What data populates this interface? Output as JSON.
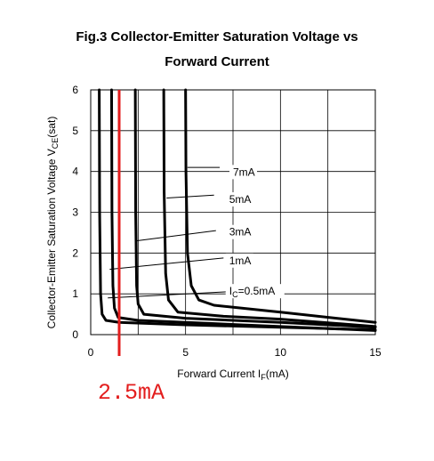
{
  "colors": {
    "curve": "#000000",
    "marker": "#e31d1d",
    "grid": "#000000"
  },
  "chart_data": {
    "type": "line",
    "title_line1": "Fig.3 Collector-Emitter Saturation Voltage vs",
    "title_line2": "Forward Current",
    "ylabel_pre": "Collector-Emitter Saturation Voltage V",
    "ylabel_sub": "CE",
    "ylabel_post": "(sat)",
    "xlabel_pre": "Forward Current I",
    "xlabel_sub": "F",
    "xlabel_post": "(mA)",
    "xlim": [
      0,
      15
    ],
    "ylim": [
      0,
      6
    ],
    "xticks": [
      0,
      5,
      10,
      15
    ],
    "yticks": [
      0,
      1,
      2,
      3,
      4,
      5,
      6
    ],
    "x_gridlines": [
      2.5,
      5,
      7.5,
      10,
      12.5
    ],
    "y_gridlines": [
      1,
      2,
      3,
      4,
      5
    ],
    "grid": true,
    "legend": "none",
    "series": [
      {
        "name": "",
        "label_pre": "I",
        "label_sub": "C",
        "label_post": "=0.5mA",
        "label_x": 7.3,
        "label_y": 1.0,
        "leader": [
          [
            0.9,
            0.9
          ],
          [
            7.2,
            1.05
          ]
        ],
        "points": [
          [
            0.45,
            6.0
          ],
          [
            0.47,
            3.0
          ],
          [
            0.52,
            1.0
          ],
          [
            0.6,
            0.5
          ],
          [
            0.8,
            0.35
          ],
          [
            1.5,
            0.3
          ],
          [
            5,
            0.24
          ],
          [
            10,
            0.18
          ],
          [
            15,
            0.12
          ]
        ]
      },
      {
        "name": "",
        "label_pre": "1mA",
        "label_sub": "",
        "label_post": "",
        "label_x": 7.3,
        "label_y": 1.75,
        "leader": [
          [
            1.0,
            1.6
          ],
          [
            7.0,
            1.88
          ]
        ],
        "points": [
          [
            1.1,
            6.0
          ],
          [
            1.12,
            3.0
          ],
          [
            1.17,
            1.2
          ],
          [
            1.25,
            0.65
          ],
          [
            1.45,
            0.42
          ],
          [
            2.5,
            0.35
          ],
          [
            6,
            0.28
          ],
          [
            10,
            0.2
          ],
          [
            15,
            0.1
          ]
        ]
      },
      {
        "name": "",
        "label_pre": "3mA",
        "label_sub": "",
        "label_post": "",
        "label_x": 7.3,
        "label_y": 2.45,
        "leader": [
          [
            2.4,
            2.3
          ],
          [
            6.6,
            2.55
          ]
        ],
        "points": [
          [
            2.35,
            6.0
          ],
          [
            2.37,
            3.0
          ],
          [
            2.42,
            1.2
          ],
          [
            2.5,
            0.75
          ],
          [
            2.8,
            0.5
          ],
          [
            5,
            0.4
          ],
          [
            10,
            0.3
          ],
          [
            15,
            0.18
          ]
        ]
      },
      {
        "name": "",
        "label_pre": "5mA",
        "label_sub": "",
        "label_post": "",
        "label_x": 7.3,
        "label_y": 3.25,
        "leader": [
          [
            4.0,
            3.35
          ],
          [
            6.5,
            3.42
          ]
        ],
        "points": [
          [
            3.85,
            6.0
          ],
          [
            3.87,
            3.5
          ],
          [
            3.95,
            1.5
          ],
          [
            4.1,
            0.85
          ],
          [
            4.6,
            0.55
          ],
          [
            7,
            0.45
          ],
          [
            10,
            0.38
          ],
          [
            15,
            0.2
          ]
        ]
      },
      {
        "name": "",
        "label_pre": "7mA",
        "label_sub": "",
        "label_post": "",
        "label_x": 7.5,
        "label_y": 3.92,
        "leader": [
          [
            5.1,
            4.1
          ],
          [
            6.8,
            4.1
          ]
        ],
        "points": [
          [
            5.0,
            6.0
          ],
          [
            5.02,
            4.0
          ],
          [
            5.1,
            2.0
          ],
          [
            5.3,
            1.2
          ],
          [
            5.7,
            0.85
          ],
          [
            6.5,
            0.72
          ],
          [
            10,
            0.55
          ],
          [
            15,
            0.3
          ]
        ]
      }
    ],
    "marker": {
      "x": 1.5,
      "label": "2.5mA"
    }
  }
}
